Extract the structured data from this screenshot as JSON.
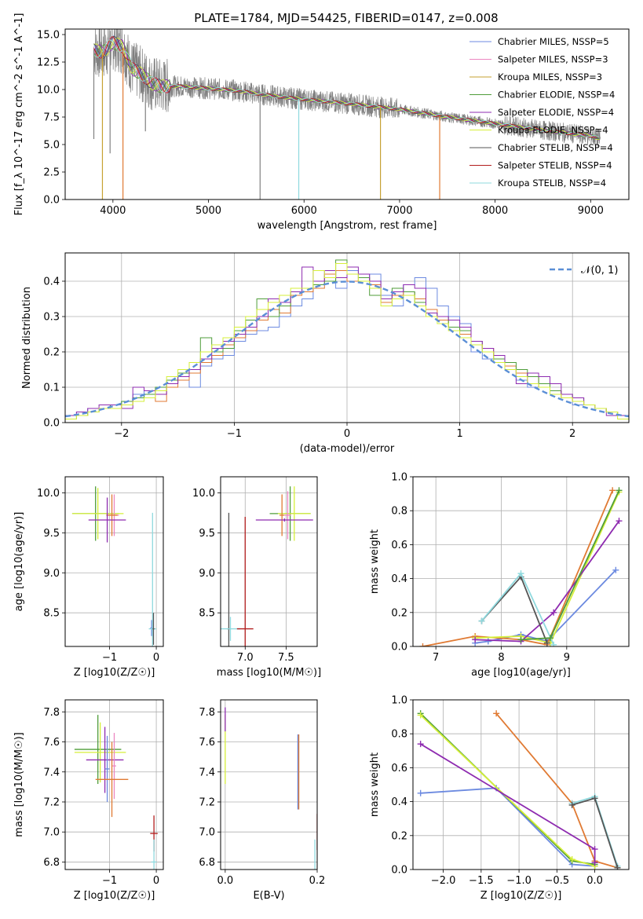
{
  "figure": {
    "title": "PLATE=1784, MJD=54425, FIBERID=0147, z=0.008"
  },
  "colors": {
    "Chabrier MILES": "#6c8ae0",
    "Salpeter MILES": "#ec86c0",
    "Kroupa MILES": "#c6a132",
    "Chabrier ELODIE": "#4f9d3a",
    "Salpeter ELODIE": "#8e2bb0",
    "Kroupa ELODIE": "#d6ef3a",
    "Chabrier STELIB": "#555555",
    "Salpeter STELIB": "#b21e1e",
    "Kroupa STELIB": "#8fd9de",
    "orange": "#e07a33",
    "data": "#808080",
    "gauss": "#5b8fd6"
  },
  "chart_data": [
    {
      "id": "spectrum",
      "type": "line",
      "title": "PLATE=1784, MJD=54425, FIBERID=0147, z=0.008",
      "xlabel": "wavelength [Angstrom, rest frame]",
      "ylabel": "Flux [f_λ 10^-17 erg cm^-2 s^-1 A^-1]",
      "xlim": [
        3500,
        9400
      ],
      "ylim": [
        0,
        15.5
      ],
      "xticks": [
        "4000",
        "5000",
        "6000",
        "7000",
        "8000",
        "9000"
      ],
      "yticks": [
        "0.0",
        "2.5",
        "5.0",
        "7.5",
        "10.0",
        "12.5",
        "15.0"
      ],
      "legend_position": "top-right",
      "legend": [
        "Chabrier MILES, N_SSP=5",
        "Salpeter MILES, N_SSP=3",
        "Kroupa MILES, N_SSP=3",
        "Chabrier ELODIE, N_SSP=4",
        "Salpeter ELODIE, N_SSP=4",
        "Kroupa ELODIE, N_SSP=4",
        "Chabrier STELIB, N_SSP=4",
        "Salpeter STELIB, N_SSP=4",
        "Kroupa STELIB, N_SSP=4"
      ],
      "continuum": {
        "x": [
          3800,
          3900,
          4000,
          4100,
          4200,
          4300,
          4400,
          4500,
          4700,
          5000,
          5300,
          5600,
          6000,
          6500,
          7000,
          7500,
          8000,
          8500,
          9000,
          9100
        ],
        "y": [
          13.6,
          13.4,
          14.3,
          13.9,
          11.9,
          11.4,
          10.6,
          10.3,
          10.3,
          10.1,
          9.9,
          9.5,
          9.1,
          8.7,
          8.2,
          7.5,
          6.9,
          6.3,
          5.8,
          5.5
        ]
      },
      "spikes": [
        {
          "x": 3890,
          "y": 0.0,
          "series": "Kroupa MILES"
        },
        {
          "x": 4105,
          "y": 0.0,
          "series": "orange"
        },
        {
          "x": 5540,
          "y": 0.0,
          "series": "data"
        },
        {
          "x": 5945,
          "y": 0.0,
          "series": "Kroupa STELIB"
        },
        {
          "x": 6800,
          "y": 0.0,
          "series": "Kroupa MILES"
        },
        {
          "x": 7420,
          "y": 0.0,
          "series": "orange"
        },
        {
          "x": 3800,
          "y": 5.5,
          "series": "data"
        },
        {
          "x": 3970,
          "y": 4.2,
          "series": "data"
        },
        {
          "x": 4340,
          "y": 6.2,
          "series": "data"
        }
      ]
    },
    {
      "id": "residuals",
      "type": "area",
      "xlabel": "(data-model)/error",
      "ylabel": "Normed distribution",
      "xlim": [
        -2.5,
        2.5
      ],
      "ylim": [
        0,
        0.48
      ],
      "xticks": [
        "−2",
        "−1",
        "0",
        "1",
        "2"
      ],
      "yticks": [
        "0.0",
        "0.1",
        "0.2",
        "0.3",
        "0.4"
      ],
      "grid": true,
      "legend_position": "top-right",
      "legend": [
        "𝒩(0, 1)"
      ],
      "bin_edges": [
        -2.5,
        -2.4,
        -2.3,
        -2.2,
        -2.1,
        -2.0,
        -1.9,
        -1.8,
        -1.7,
        -1.6,
        -1.5,
        -1.4,
        -1.3,
        -1.2,
        -1.1,
        -1.0,
        -0.9,
        -0.8,
        -0.7,
        -0.6,
        -0.5,
        -0.4,
        -0.3,
        -0.2,
        -0.1,
        0.0,
        0.1,
        0.2,
        0.3,
        0.4,
        0.5,
        0.6,
        0.7,
        0.8,
        0.9,
        1.0,
        1.1,
        1.2,
        1.3,
        1.4,
        1.5,
        1.6,
        1.7,
        1.8,
        1.9,
        2.0,
        2.1,
        2.2,
        2.3,
        2.4,
        2.5
      ],
      "series": [
        {
          "color": "Chabrier MILES",
          "values": [
            0.02,
            0.03,
            0.04,
            0.04,
            0.05,
            0.06,
            0.08,
            0.09,
            0.09,
            0.11,
            0.13,
            0.1,
            0.16,
            0.18,
            0.19,
            0.23,
            0.25,
            0.26,
            0.27,
            0.3,
            0.33,
            0.35,
            0.4,
            0.42,
            0.38,
            0.43,
            0.4,
            0.42,
            0.36,
            0.33,
            0.39,
            0.41,
            0.38,
            0.33,
            0.3,
            0.28,
            0.2,
            0.18,
            0.17,
            0.15,
            0.12,
            0.1,
            0.11,
            0.08,
            0.07,
            0.05,
            0.05,
            0.04,
            0.03,
            0.02
          ]
        },
        {
          "color": "orange",
          "values": [
            0.02,
            0.02,
            0.03,
            0.04,
            0.04,
            0.05,
            0.07,
            0.08,
            0.06,
            0.1,
            0.12,
            0.14,
            0.17,
            0.19,
            0.22,
            0.24,
            0.26,
            0.29,
            0.32,
            0.31,
            0.36,
            0.37,
            0.38,
            0.42,
            0.43,
            0.4,
            0.41,
            0.39,
            0.34,
            0.36,
            0.37,
            0.35,
            0.32,
            0.29,
            0.27,
            0.25,
            0.22,
            0.21,
            0.18,
            0.16,
            0.14,
            0.13,
            0.1,
            0.09,
            0.07,
            0.06,
            0.05,
            0.04,
            0.03,
            0.02
          ]
        },
        {
          "color": "Chabrier ELODIE",
          "values": [
            0.01,
            0.02,
            0.03,
            0.04,
            0.05,
            0.06,
            0.07,
            0.08,
            0.1,
            0.12,
            0.14,
            0.17,
            0.24,
            0.2,
            0.21,
            0.26,
            0.29,
            0.35,
            0.3,
            0.33,
            0.37,
            0.38,
            0.39,
            0.4,
            0.46,
            0.42,
            0.41,
            0.36,
            0.35,
            0.38,
            0.37,
            0.34,
            0.31,
            0.3,
            0.27,
            0.26,
            0.23,
            0.2,
            0.18,
            0.17,
            0.15,
            0.13,
            0.11,
            0.09,
            0.08,
            0.07,
            0.05,
            0.04,
            0.03,
            0.02
          ]
        },
        {
          "color": "Salpeter ELODIE",
          "values": [
            0.02,
            0.03,
            0.04,
            0.05,
            0.05,
            0.04,
            0.1,
            0.09,
            0.08,
            0.11,
            0.13,
            0.15,
            0.18,
            0.21,
            0.23,
            0.25,
            0.27,
            0.3,
            0.35,
            0.34,
            0.37,
            0.44,
            0.4,
            0.43,
            0.41,
            0.44,
            0.42,
            0.4,
            0.35,
            0.37,
            0.39,
            0.38,
            0.31,
            0.3,
            0.29,
            0.27,
            0.23,
            0.21,
            0.19,
            0.15,
            0.11,
            0.14,
            0.13,
            0.11,
            0.08,
            0.07,
            0.05,
            0.04,
            0.02,
            0.02
          ]
        },
        {
          "color": "Kroupa ELODIE",
          "values": [
            0.01,
            0.02,
            0.03,
            0.04,
            0.04,
            0.05,
            0.06,
            0.07,
            0.09,
            0.13,
            0.15,
            0.17,
            0.2,
            0.22,
            0.24,
            0.27,
            0.3,
            0.32,
            0.34,
            0.36,
            0.38,
            0.38,
            0.43,
            0.41,
            0.45,
            0.42,
            0.4,
            0.38,
            0.33,
            0.35,
            0.36,
            0.33,
            0.3,
            0.28,
            0.26,
            0.24,
            0.22,
            0.2,
            0.17,
            0.15,
            0.13,
            0.11,
            0.1,
            0.08,
            0.07,
            0.06,
            0.05,
            0.04,
            0.03,
            0.01
          ]
        }
      ],
      "gaussian": {
        "mean": 0,
        "sigma": 1
      }
    },
    {
      "id": "age_vs_Z",
      "type": "scatter",
      "xlabel": "Z [log10(Z/Z☉)]",
      "ylabel": "age [log10(age/yr)]",
      "xlim": [
        -1.95,
        0.15
      ],
      "ylim": [
        8.08,
        10.2
      ],
      "xticks": [
        "−1",
        "0"
      ],
      "yticks": [
        "8.5",
        "9.0",
        "9.5",
        "10.0"
      ],
      "grid": true,
      "points": [
        {
          "x": -1.3,
          "y": 9.74,
          "xerr": 0.5,
          "yerr": 0.34,
          "color": "Chabrier ELODIE"
        },
        {
          "x": -1.25,
          "y": 9.74,
          "xerr": 0.55,
          "yerr": 0.32,
          "color": "Kroupa ELODIE"
        },
        {
          "x": -0.9,
          "y": 9.72,
          "xerr": 0.1,
          "yerr": 0.26,
          "color": "Salpeter MILES"
        },
        {
          "x": -0.95,
          "y": 9.72,
          "xerr": 0.12,
          "yerr": 0.26,
          "color": "orange"
        },
        {
          "x": -1.05,
          "y": 9.66,
          "xerr": 0.4,
          "yerr": 0.28,
          "color": "Salpeter ELODIE"
        },
        {
          "x": -0.1,
          "y": 8.31,
          "xerr": 0.03,
          "yerr": 0.1,
          "color": "Chabrier MILES"
        },
        {
          "x": -0.08,
          "y": 8.3,
          "xerr": 0.08,
          "yerr": 1.45,
          "color": "Kroupa STELIB"
        },
        {
          "x": -0.06,
          "y": 8.3,
          "xerr": 0.02,
          "yerr": 0.2,
          "color": "Chabrier STELIB"
        }
      ]
    },
    {
      "id": "age_vs_mass",
      "type": "scatter",
      "xlabel": "mass [log10(M/M☉)]",
      "ylabel": "",
      "xlim": [
        6.7,
        7.88
      ],
      "ylim": [
        8.08,
        10.2
      ],
      "xticks": [
        "7.0",
        "7.5"
      ],
      "yticks": [
        "8.5",
        "9.0",
        "9.5",
        "10.0"
      ],
      "grid": true,
      "points": [
        {
          "x": 7.55,
          "y": 9.74,
          "xerr": 0.25,
          "yerr": 0.34,
          "color": "Chabrier ELODIE"
        },
        {
          "x": 7.6,
          "y": 9.74,
          "xerr": 0.2,
          "yerr": 0.34,
          "color": "Kroupa ELODIE"
        },
        {
          "x": 7.45,
          "y": 9.72,
          "xerr": 0.03,
          "yerr": 0.26,
          "color": "orange"
        },
        {
          "x": 7.52,
          "y": 9.72,
          "xerr": 0.04,
          "yerr": 0.3,
          "color": "Salpeter MILES"
        },
        {
          "x": 7.48,
          "y": 9.66,
          "xerr": 0.35,
          "yerr": 0.02,
          "color": "Salpeter ELODIE"
        },
        {
          "x": 6.8,
          "y": 8.3,
          "xerr": 0.02,
          "yerr": 1.45,
          "color": "Chabrier STELIB"
        },
        {
          "x": 6.82,
          "y": 8.3,
          "xerr": 0.12,
          "yerr": 0.15,
          "color": "Kroupa STELIB"
        },
        {
          "x": 7.0,
          "y": 8.3,
          "xerr": 0.1,
          "yerr": 1.4,
          "color": "Salpeter STELIB"
        }
      ]
    },
    {
      "id": "weight_vs_age",
      "type": "line",
      "xlabel": "age [log10(age/yr)]",
      "ylabel": "mass weight",
      "xlim": [
        6.65,
        9.95
      ],
      "ylim": [
        0,
        1
      ],
      "xticks": [
        "7",
        "8",
        "9"
      ],
      "yticks": [
        "0.0",
        "0.2",
        "0.4",
        "0.6",
        "0.8",
        "1.0"
      ],
      "grid": true,
      "series": [
        {
          "color": "Chabrier MILES",
          "x": [
            7.6,
            7.8,
            8.3,
            8.7,
            9.75
          ],
          "y": [
            0.02,
            0.03,
            0.07,
            0.03,
            0.45
          ]
        },
        {
          "color": "orange",
          "x": [
            6.8,
            7.6,
            8.3,
            8.7,
            9.7
          ],
          "y": [
            0.0,
            0.06,
            0.04,
            0.01,
            0.92
          ]
        },
        {
          "color": "Kroupa ELODIE",
          "x": [
            7.6,
            8.3,
            8.75,
            9.8
          ],
          "y": [
            0.05,
            0.06,
            0.02,
            0.91
          ]
        },
        {
          "color": "Salpeter ELODIE",
          "x": [
            7.6,
            8.3,
            8.8,
            9.8
          ],
          "y": [
            0.04,
            0.03,
            0.2,
            0.74
          ]
        },
        {
          "color": "Chabrier STELIB",
          "x": [
            7.7,
            8.3,
            8.7
          ],
          "y": [
            0.15,
            0.41,
            0.02
          ]
        },
        {
          "color": "Kroupa STELIB",
          "x": [
            7.7,
            8.3,
            8.8
          ],
          "y": [
            0.15,
            0.43,
            0.01
          ]
        },
        {
          "color": "Chabrier ELODIE",
          "x": [
            8.3,
            8.75,
            9.8
          ],
          "y": [
            0.04,
            0.05,
            0.92
          ]
        }
      ]
    },
    {
      "id": "mass_vs_Z",
      "type": "scatter",
      "xlabel": "Z [log10(Z/Z☉)]",
      "ylabel": "mass [log10(M/M☉)]",
      "xlim": [
        -1.95,
        0.15
      ],
      "ylim": [
        6.75,
        7.88
      ],
      "xticks": [
        "−1",
        "0"
      ],
      "yticks": [
        "6.8",
        "7.0",
        "7.2",
        "7.4",
        "7.6",
        "7.8"
      ],
      "grid": true,
      "points": [
        {
          "x": -1.25,
          "y": 7.55,
          "xerr": 0.5,
          "yerr": 0.23,
          "color": "Chabrier ELODIE"
        },
        {
          "x": -1.2,
          "y": 7.53,
          "xerr": 0.55,
          "yerr": 0.2,
          "color": "Kroupa ELODIE"
        },
        {
          "x": -1.1,
          "y": 7.48,
          "xerr": 0.4,
          "yerr": 0.22,
          "color": "Salpeter ELODIE"
        },
        {
          "x": -1.05,
          "y": 7.42,
          "xerr": 0.05,
          "yerr": 0.22,
          "color": "Chabrier MILES"
        },
        {
          "x": -0.9,
          "y": 7.44,
          "xerr": 0.04,
          "yerr": 0.22,
          "color": "Salpeter MILES"
        },
        {
          "x": -0.95,
          "y": 7.35,
          "xerr": 0.35,
          "yerr": 0.25,
          "color": "orange"
        },
        {
          "x": -0.05,
          "y": 6.99,
          "xerr": 0.08,
          "yerr": 0.12,
          "color": "Salpeter STELIB"
        },
        {
          "x": -0.05,
          "y": 6.8,
          "xerr": 0.06,
          "yerr": 0.15,
          "color": "Kroupa STELIB"
        }
      ]
    },
    {
      "id": "mass_vs_ebv",
      "type": "scatter",
      "xlabel": "E(B-V)",
      "ylabel": "",
      "xlim": [
        -0.01,
        0.2
      ],
      "ylim": [
        6.75,
        7.88
      ],
      "xticks": [
        "0.0",
        "0.2"
      ],
      "yticks": [
        "6.8",
        "7.0",
        "7.2",
        "7.4",
        "7.6",
        "7.8"
      ],
      "grid": true,
      "points": [
        {
          "x": 0.0,
          "y": 7.55,
          "xerr": 0,
          "yerr": 0.23,
          "color": "Kroupa ELODIE"
        },
        {
          "x": 0.0,
          "y": 7.75,
          "xerr": 0,
          "yerr": 0.08,
          "color": "Salpeter ELODIE"
        },
        {
          "x": 0.158,
          "y": 7.4,
          "xerr": 0,
          "yerr": 0.25,
          "color": "Chabrier MILES"
        },
        {
          "x": 0.16,
          "y": 7.4,
          "xerr": 0,
          "yerr": 0.25,
          "color": "orange"
        },
        {
          "x": 0.195,
          "y": 6.85,
          "xerr": 0,
          "yerr": 0.1,
          "color": "Kroupa STELIB"
        },
        {
          "x": 0.2,
          "y": 7.0,
          "xerr": 0,
          "yerr": 0.12,
          "color": "Salpeter STELIB"
        }
      ]
    },
    {
      "id": "weight_vs_Z",
      "type": "line",
      "xlabel": "Z [log10(Z/Z☉)]",
      "ylabel": "mass weight",
      "xlim": [
        -2.4,
        0.45
      ],
      "ylim": [
        0,
        1
      ],
      "xticks": [
        "−2.0",
        "−1.5",
        "−1.0",
        "−0.5",
        "0.0"
      ],
      "yticks": [
        "0.0",
        "0.2",
        "0.4",
        "0.6",
        "0.8",
        "1.0"
      ],
      "grid": true,
      "series": [
        {
          "color": "Chabrier MILES",
          "x": [
            -2.3,
            -1.3,
            -0.3,
            0.0
          ],
          "y": [
            0.45,
            0.48,
            0.03,
            0.02
          ]
        },
        {
          "color": "orange",
          "x": [
            -1.3,
            -0.3,
            0.0,
            0.3
          ],
          "y": [
            0.92,
            0.39,
            0.05,
            0.01
          ]
        },
        {
          "color": "Chabrier ELODIE",
          "x": [
            -2.3,
            -0.3,
            0.0
          ],
          "y": [
            0.92,
            0.05,
            0.03
          ]
        },
        {
          "color": "Kroupa ELODIE",
          "x": [
            -2.3,
            -0.3,
            0.0
          ],
          "y": [
            0.91,
            0.06,
            0.02
          ]
        },
        {
          "color": "Salpeter ELODIE",
          "x": [
            -2.3,
            0.0,
            0.0
          ],
          "y": [
            0.74,
            0.12,
            0.04
          ]
        },
        {
          "color": "Kroupa STELIB",
          "x": [
            -0.3,
            0.0,
            0.3
          ],
          "y": [
            0.39,
            0.43,
            0.02
          ]
        },
        {
          "color": "Chabrier STELIB",
          "x": [
            -0.3,
            0.0,
            0.3
          ],
          "y": [
            0.38,
            0.42,
            0.01
          ]
        }
      ]
    }
  ]
}
